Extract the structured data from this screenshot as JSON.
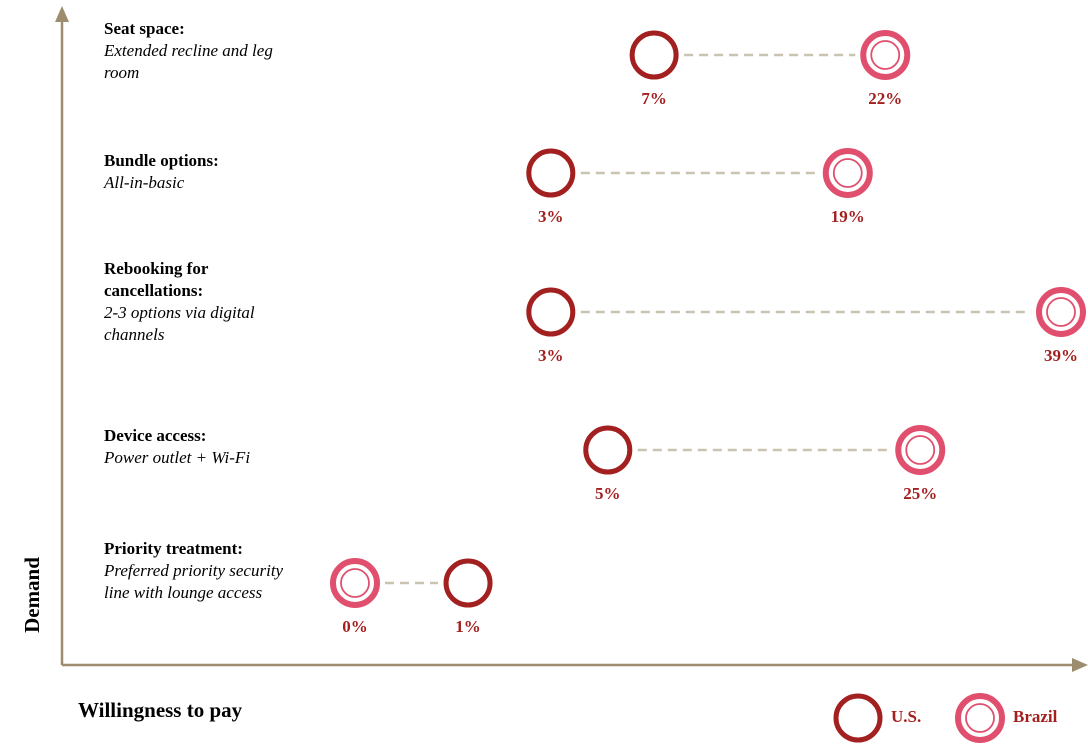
{
  "chart_data": {
    "type": "dumbbell",
    "y_axis_label": "Demand",
    "x_axis_label": "Willingness to pay",
    "xscale": "sqrt",
    "xlim": [
      0,
      40
    ],
    "categories": [
      "Seat space:",
      "Bundle options:",
      "Rebooking for cancellations:",
      "Device access:",
      "Priority treatment:"
    ],
    "descriptions": [
      "Extended recline and leg room",
      "All-in-basic",
      "2-3 options via digital channels",
      "Power outlet + Wi-Fi",
      "Preferred priority security line with lounge access"
    ],
    "series": [
      {
        "name": "U.S.",
        "color": "#a32020",
        "values": [
          7,
          3,
          3,
          5,
          1
        ],
        "value_labels": [
          "7%",
          "3%",
          "3%",
          "5%",
          "1%"
        ]
      },
      {
        "name": "Brazil",
        "color": "#e0506e",
        "values": [
          22,
          19,
          39,
          25,
          0
        ],
        "value_labels": [
          "22%",
          "19%",
          "39%",
          "25%",
          "0%"
        ]
      }
    ]
  }
}
